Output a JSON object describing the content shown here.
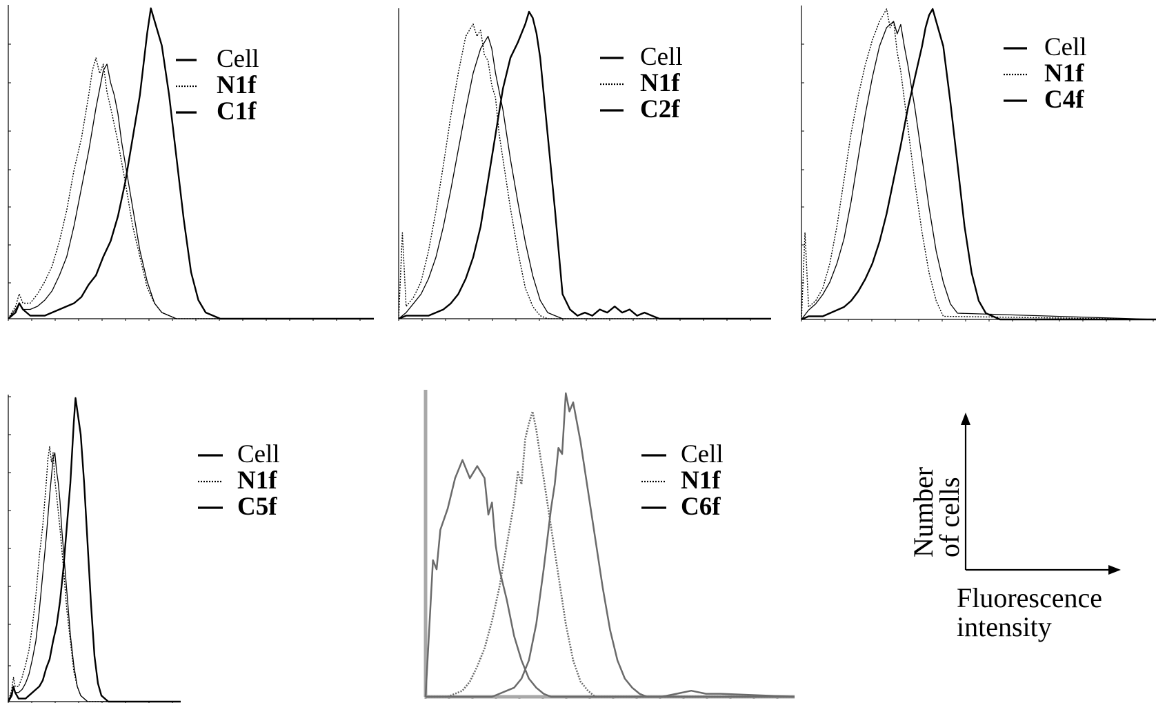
{
  "chart_data": [
    {
      "id": "p1",
      "type": "line",
      "xlim": [
        0,
        100
      ],
      "ylim": [
        0,
        100
      ],
      "series": [
        {
          "name": "Cell",
          "line": "solid-thick",
          "x": [
            0,
            2,
            3,
            4,
            6,
            8,
            10,
            12,
            14,
            16,
            18,
            20,
            22,
            24,
            26,
            28,
            30,
            32,
            34,
            36,
            37,
            38,
            39,
            40,
            42,
            44,
            46,
            48,
            50,
            52,
            54,
            56,
            58,
            60,
            100
          ],
          "y": [
            0,
            2,
            5,
            3,
            1,
            1,
            1,
            2,
            3,
            4,
            5,
            7,
            11,
            14,
            20,
            25,
            33,
            44,
            58,
            72,
            82,
            92,
            100,
            96,
            88,
            72,
            52,
            32,
            15,
            6,
            2,
            1,
            0,
            0,
            0
          ]
        },
        {
          "name": "N1f",
          "line": "dotted",
          "x": [
            0,
            2,
            3,
            4,
            6,
            8,
            10,
            12,
            14,
            16,
            18,
            20,
            22,
            23,
            24,
            25,
            26,
            27,
            28,
            30,
            32,
            34,
            36,
            38,
            40,
            42,
            44,
            46,
            48,
            50,
            100
          ],
          "y": [
            0,
            4,
            8,
            5,
            5,
            8,
            12,
            17,
            25,
            35,
            48,
            58,
            72,
            80,
            84,
            79,
            82,
            73,
            68,
            57,
            44,
            30,
            20,
            10,
            5,
            2,
            1,
            0,
            0,
            0,
            0
          ]
        },
        {
          "name": "C1f",
          "line": "solid",
          "x": [
            0,
            2,
            3,
            4,
            6,
            8,
            10,
            12,
            14,
            16,
            18,
            20,
            22,
            24,
            26,
            27,
            28,
            29,
            30,
            31,
            32,
            34,
            36,
            38,
            40,
            42,
            44,
            46,
            48,
            50,
            100
          ],
          "y": [
            0,
            3,
            5,
            3,
            3,
            4,
            6,
            9,
            14,
            20,
            30,
            42,
            54,
            68,
            80,
            82,
            76,
            72,
            66,
            57,
            50,
            36,
            22,
            12,
            5,
            2,
            1,
            0,
            0,
            0,
            0
          ]
        }
      ]
    },
    {
      "id": "p2",
      "type": "line",
      "xlim": [
        0,
        100
      ],
      "ylim": [
        0,
        100
      ],
      "series": [
        {
          "name": "Cell",
          "line": "solid-thick",
          "x": [
            0,
            2,
            4,
            6,
            8,
            10,
            12,
            14,
            16,
            18,
            20,
            22,
            24,
            26,
            28,
            30,
            32,
            34,
            35,
            36,
            37,
            38,
            40,
            42,
            44,
            46,
            48,
            50,
            52,
            54,
            56,
            58,
            60,
            62,
            64,
            66,
            68,
            70,
            72,
            100
          ],
          "y": [
            0,
            1,
            1,
            1,
            1,
            2,
            3,
            5,
            8,
            13,
            20,
            30,
            45,
            60,
            75,
            85,
            90,
            96,
            100,
            98,
            93,
            85,
            60,
            35,
            8,
            3,
            1,
            2,
            1,
            3,
            2,
            4,
            2,
            3,
            1,
            2,
            1,
            0,
            0,
            0
          ]
        },
        {
          "name": "N1f",
          "line": "dotted",
          "x": [
            0,
            1,
            2,
            4,
            6,
            8,
            10,
            12,
            14,
            16,
            18,
            20,
            21,
            22,
            23,
            24,
            25,
            26,
            27,
            28,
            30,
            32,
            34,
            36,
            38,
            40,
            100
          ],
          "y": [
            0,
            28,
            4,
            7,
            12,
            22,
            35,
            50,
            66,
            80,
            92,
            96,
            92,
            94,
            86,
            84,
            76,
            72,
            60,
            52,
            36,
            22,
            10,
            4,
            1,
            0,
            0
          ]
        },
        {
          "name": "C2f",
          "line": "solid",
          "x": [
            0,
            2,
            4,
            6,
            8,
            10,
            12,
            14,
            16,
            18,
            20,
            22,
            24,
            25,
            26,
            27,
            28,
            29,
            30,
            32,
            34,
            36,
            38,
            40,
            42,
            44,
            100
          ],
          "y": [
            0,
            2,
            5,
            8,
            13,
            20,
            30,
            42,
            55,
            68,
            80,
            88,
            92,
            88,
            80,
            74,
            68,
            60,
            52,
            38,
            25,
            14,
            6,
            2,
            1,
            0,
            0
          ]
        }
      ]
    },
    {
      "id": "p3",
      "type": "line",
      "xlim": [
        0,
        100
      ],
      "ylim": [
        0,
        100
      ],
      "series": [
        {
          "name": "Cell",
          "line": "solid-thick",
          "x": [
            0,
            2,
            4,
            6,
            8,
            10,
            12,
            14,
            16,
            18,
            20,
            22,
            24,
            26,
            28,
            30,
            32,
            34,
            35,
            36,
            37,
            38,
            40,
            42,
            44,
            46,
            48,
            50,
            52,
            54,
            56,
            100
          ],
          "y": [
            0,
            1,
            1,
            1,
            2,
            3,
            4,
            6,
            9,
            13,
            18,
            25,
            34,
            45,
            56,
            68,
            78,
            88,
            94,
            98,
            100,
            96,
            88,
            70,
            50,
            30,
            15,
            6,
            2,
            1,
            0,
            0
          ]
        },
        {
          "name": "N1f",
          "line": "dotted",
          "x": [
            0,
            1,
            2,
            4,
            6,
            8,
            10,
            12,
            14,
            16,
            18,
            20,
            22,
            24,
            25,
            26,
            27,
            28,
            30,
            32,
            34,
            36,
            38,
            40,
            100
          ],
          "y": [
            0,
            28,
            4,
            6,
            10,
            18,
            30,
            45,
            60,
            72,
            82,
            90,
            96,
            100,
            94,
            96,
            86,
            80,
            62,
            44,
            28,
            15,
            6,
            1,
            0
          ]
        },
        {
          "name": "C4f",
          "line": "solid",
          "x": [
            0,
            2,
            4,
            6,
            8,
            10,
            12,
            14,
            16,
            18,
            20,
            22,
            24,
            26,
            27,
            28,
            29,
            30,
            31,
            32,
            34,
            36,
            38,
            40,
            42,
            44,
            100
          ],
          "y": [
            0,
            3,
            5,
            8,
            12,
            18,
            26,
            38,
            52,
            66,
            78,
            88,
            94,
            96,
            92,
            95,
            88,
            82,
            75,
            68,
            52,
            36,
            22,
            12,
            5,
            2,
            0
          ]
        }
      ]
    },
    {
      "id": "p4",
      "type": "line",
      "xlim": [
        0,
        100
      ],
      "ylim": [
        0,
        100
      ],
      "series": [
        {
          "name": "Cell",
          "line": "solid-thick",
          "x": [
            0,
            2,
            3,
            4,
            6,
            8,
            10,
            12,
            14,
            16,
            18,
            20,
            22,
            24,
            26,
            28,
            30,
            32,
            34,
            36,
            37,
            38,
            39,
            40,
            42,
            44,
            46,
            48,
            50,
            52,
            54,
            56,
            58,
            60,
            100
          ],
          "y": [
            0,
            2,
            5,
            3,
            1,
            1,
            1,
            2,
            3,
            4,
            5,
            7,
            11,
            14,
            20,
            25,
            33,
            44,
            58,
            72,
            82,
            92,
            100,
            96,
            88,
            72,
            52,
            32,
            15,
            6,
            2,
            1,
            0,
            0,
            0
          ]
        },
        {
          "name": "N1f",
          "line": "dotted",
          "x": [
            0,
            2,
            3,
            4,
            6,
            8,
            10,
            12,
            14,
            16,
            18,
            20,
            22,
            23,
            24,
            25,
            26,
            27,
            28,
            30,
            32,
            34,
            36,
            38,
            40,
            42,
            44,
            46,
            48,
            50,
            100
          ],
          "y": [
            0,
            4,
            8,
            5,
            5,
            8,
            12,
            17,
            25,
            35,
            48,
            58,
            72,
            80,
            84,
            79,
            82,
            73,
            68,
            57,
            44,
            30,
            20,
            10,
            5,
            2,
            1,
            0,
            0,
            0,
            0
          ]
        },
        {
          "name": "C5f",
          "line": "solid",
          "x": [
            0,
            2,
            3,
            4,
            6,
            8,
            10,
            12,
            14,
            16,
            18,
            20,
            22,
            24,
            26,
            27,
            28,
            29,
            30,
            31,
            32,
            34,
            36,
            38,
            40,
            42,
            44,
            46,
            48,
            50,
            100
          ],
          "y": [
            0,
            3,
            5,
            3,
            3,
            4,
            6,
            9,
            14,
            20,
            30,
            42,
            54,
            68,
            80,
            82,
            76,
            72,
            66,
            57,
            50,
            36,
            22,
            12,
            5,
            2,
            1,
            0,
            0,
            0,
            0
          ]
        }
      ]
    },
    {
      "id": "p5",
      "type": "line",
      "xlim": [
        0,
        100
      ],
      "ylim": [
        0,
        100
      ],
      "series": [
        {
          "name": "Cell",
          "line": "solid",
          "x": [
            0,
            2,
            3,
            4,
            6,
            8,
            10,
            12,
            14,
            15,
            16,
            17,
            18,
            19,
            20,
            22,
            24,
            26,
            28,
            30,
            32,
            34,
            36,
            40,
            44,
            48,
            52,
            56,
            60,
            64,
            68,
            72,
            76,
            80,
            100
          ],
          "y": [
            0,
            45,
            42,
            55,
            62,
            72,
            78,
            72,
            76,
            74,
            72,
            60,
            64,
            50,
            42,
            32,
            20,
            12,
            6,
            3,
            1,
            0,
            0,
            0,
            0,
            0,
            0,
            0,
            0,
            0,
            1,
            2,
            1,
            1,
            0
          ]
        },
        {
          "name": "N1f",
          "line": "dotted",
          "x": [
            0,
            6,
            8,
            10,
            12,
            14,
            16,
            18,
            20,
            22,
            24,
            25,
            26,
            27,
            28,
            29,
            30,
            32,
            34,
            36,
            38,
            40,
            42,
            44,
            46,
            100
          ],
          "y": [
            0,
            0,
            1,
            2,
            5,
            10,
            16,
            25,
            36,
            50,
            64,
            74,
            70,
            85,
            90,
            94,
            88,
            72,
            56,
            40,
            24,
            12,
            5,
            2,
            0,
            0
          ]
        },
        {
          "name": "C6f",
          "line": "solid",
          "x": [
            0,
            18,
            20,
            22,
            24,
            26,
            28,
            30,
            32,
            34,
            35,
            36,
            37,
            38,
            39,
            40,
            42,
            44,
            46,
            48,
            50,
            52,
            54,
            56,
            58,
            60,
            62,
            64,
            100
          ],
          "y": [
            0,
            0,
            1,
            2,
            3,
            6,
            12,
            24,
            42,
            62,
            70,
            82,
            80,
            100,
            94,
            97,
            84,
            68,
            52,
            36,
            22,
            12,
            6,
            3,
            1,
            0,
            0,
            0,
            0
          ]
        }
      ]
    }
  ],
  "legends": [
    {
      "cell": "Cell",
      "mid": "N1f",
      "last": "C1f"
    },
    {
      "cell": "Cell",
      "mid": "N1f",
      "last": "C2f"
    },
    {
      "cell": "Cell",
      "mid": "N1f",
      "last": "C4f"
    },
    {
      "cell": "Cell",
      "mid": "N1f",
      "last": "C5f"
    },
    {
      "cell": "Cell",
      "mid": "N1f",
      "last": "C6f"
    }
  ],
  "axis_key": {
    "y_line1": "Number",
    "y_line2": "of cells",
    "x_line1": "Fluorescence",
    "x_line2": "intensity"
  }
}
